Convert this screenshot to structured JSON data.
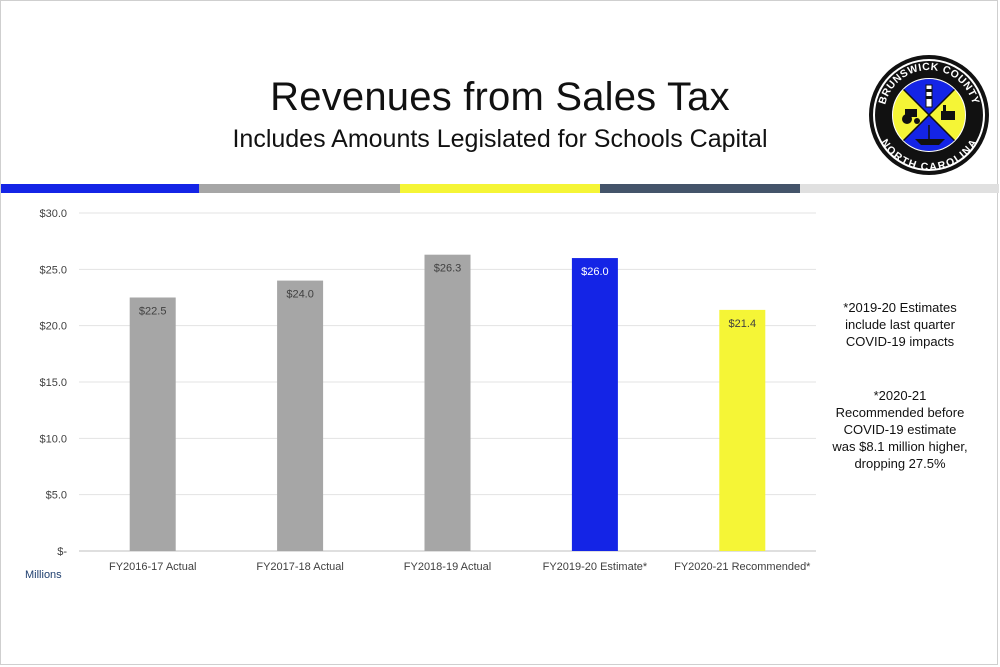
{
  "slide": {
    "title": "Revenues from Sales Tax",
    "subtitle": "Includes Amounts Legislated for Schools Capital"
  },
  "logo": {
    "top_text": "BRUNSWICK COUNTY",
    "bottom_text": "NORTH CAROLINA"
  },
  "stripe_colors": [
    "#1424e6",
    "#a6a6a6",
    "#f5f536",
    "#44546a",
    "#e0e0e0"
  ],
  "chart_data": {
    "type": "bar",
    "categories": [
      "FY2016-17 Actual",
      "FY2017-18 Actual",
      "FY2018-19 Actual",
      "FY2019-20 Estimate*",
      "FY2020-21 Recommended*"
    ],
    "values": [
      22.5,
      24.0,
      26.3,
      26.0,
      21.4
    ],
    "value_labels": [
      "$22.5",
      "$24.0",
      "$26.3",
      "$26.0",
      "$21.4"
    ],
    "bar_colors": [
      "#a6a6a6",
      "#a6a6a6",
      "#a6a6a6",
      "#1424e6",
      "#f5f536"
    ],
    "value_label_colors": [
      "#404040",
      "#404040",
      "#404040",
      "#ffffff",
      "#404040"
    ],
    "ylim": [
      0,
      30
    ],
    "yticks": [
      0,
      5,
      10,
      15,
      20,
      25,
      30
    ],
    "ytick_labels": [
      "$-",
      "$5.0",
      "$10.0",
      "$15.0",
      "$20.0",
      "$25.0",
      "$30.0"
    ],
    "ylabel": "Millions",
    "grid": true
  },
  "notes": [
    "*2019-20 Estimates include last quarter COVID-19 impacts",
    "*2020-21 Recommended before COVID-19 estimate was $8.1 million higher, dropping 27.5%"
  ]
}
